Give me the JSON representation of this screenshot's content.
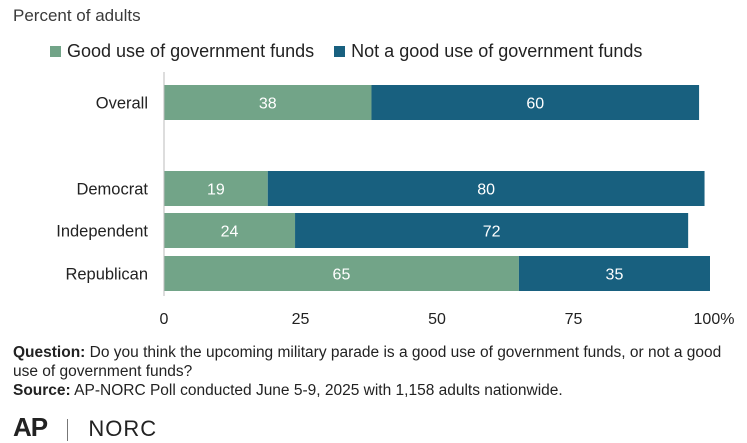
{
  "header": {
    "subtitle": "Percent of adults"
  },
  "colors": {
    "good": "#72a488",
    "not_good": "#18607f",
    "axis": "#bbbbbb"
  },
  "chart_data": {
    "type": "bar",
    "orientation": "horizontal",
    "stacked": true,
    "subtitle": "Percent of adults",
    "categories": [
      "Overall",
      "Democrat",
      "Independent",
      "Republican"
    ],
    "series": [
      {
        "name": "Good use of government funds",
        "values": [
          38,
          19,
          24,
          65
        ],
        "color": "#72a488"
      },
      {
        "name": "Not a good use of government funds",
        "values": [
          60,
          80,
          72,
          35
        ],
        "color": "#18607f"
      }
    ],
    "xlim": [
      0,
      100
    ],
    "xticks": [
      "0",
      "25",
      "50",
      "75",
      "100%"
    ],
    "legend": "top",
    "grid": false
  },
  "footer": {
    "question_label": "Question:",
    "question_text": "Do you think the upcoming military parade is a good use of government funds, or not a good use of government funds?",
    "source_label": "Source:",
    "source_text": "AP-NORC Poll conducted June 5-9, 2025 with 1,158 adults nationwide."
  },
  "logos": {
    "ap": "AP",
    "norc": "NORC"
  }
}
